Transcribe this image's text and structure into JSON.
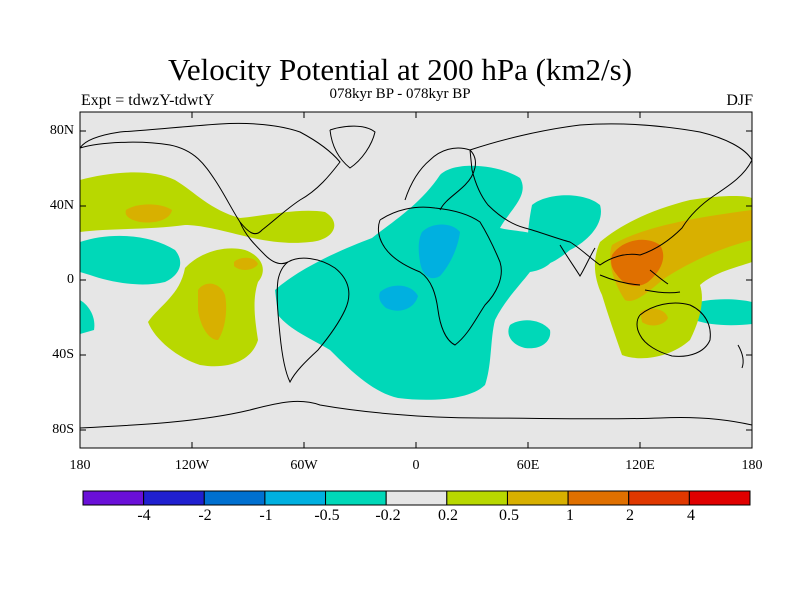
{
  "title": "Velocity Potential at 200 hPa (km2/s)",
  "subtitle": "078kyr BP - 078kyr BP",
  "left_label": "Expt = tdwzY-tdwtY",
  "right_label": "DJF",
  "lat_ticks": [
    "80N",
    "40N",
    "0",
    "40S",
    "80S"
  ],
  "lon_ticks": [
    "180",
    "120W",
    "60W",
    "0",
    "60E",
    "120E",
    "180"
  ],
  "colorbar": {
    "colors": [
      "#6a10d8",
      "#2020d0",
      "#0070d0",
      "#00b0e0",
      "#00d8b8",
      "#e6e6e6",
      "#b8d800",
      "#d8b000",
      "#e07000",
      "#e03800",
      "#e00000"
    ],
    "labels": [
      "-4",
      "-2",
      "-1",
      "-0.5",
      "-0.2",
      "0.2",
      "0.5",
      "1",
      "2",
      "4"
    ]
  },
  "map": {
    "background_color": "#e6e6e6",
    "fields": [
      {
        "name": "central-atlantic-africa-negative",
        "color": "#00d8b8",
        "level": "-0.5 to -0.2"
      },
      {
        "name": "atlantic-core-negative",
        "color": "#00b0e0",
        "level": "-1 to -0.5"
      },
      {
        "name": "maritime-continent-positive",
        "color": "#b8d800",
        "level": "0.2 to 0.5"
      },
      {
        "name": "maritime-continent-core",
        "color": "#e07000",
        "level": "1 to 2"
      },
      {
        "name": "north-pacific-positive",
        "color": "#b8d800",
        "level": "0.2 to 0.5"
      },
      {
        "name": "east-pacific-positive",
        "color": "#b8d800",
        "level": "0.2 to 0.5"
      }
    ]
  }
}
